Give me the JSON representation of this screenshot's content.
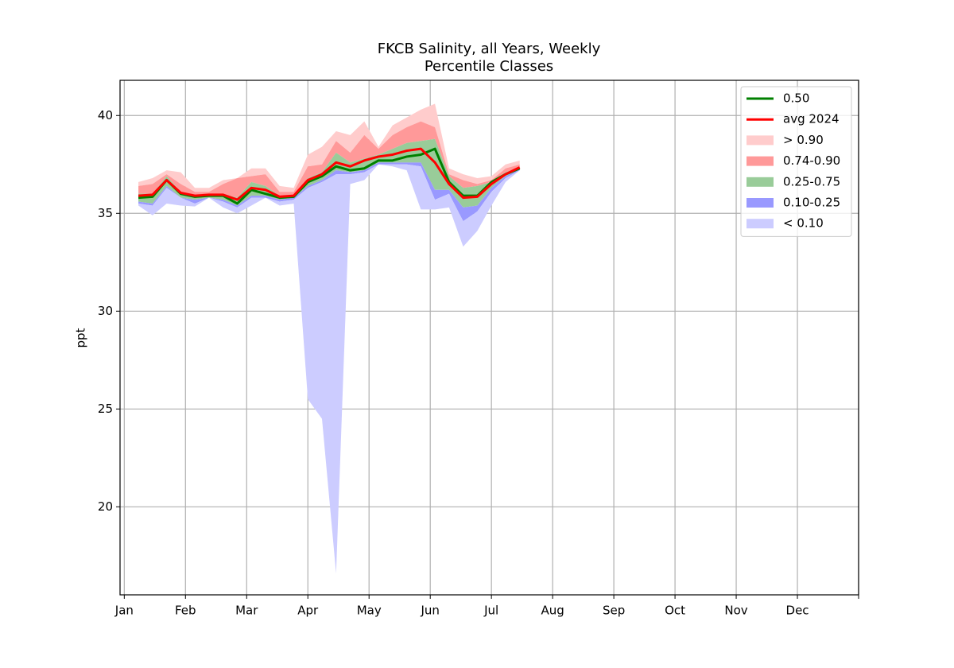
{
  "chart_data": {
    "type": "percentile-bands",
    "title": "FKCB Salinity, all Years, Weekly",
    "subtitle": "Percentile Classes",
    "ylabel": "ppt",
    "x": [
      1,
      2,
      3,
      4,
      5,
      6,
      7,
      8,
      9,
      10,
      11,
      12,
      13,
      14,
      15,
      16,
      17,
      18,
      19,
      20,
      21,
      22,
      23,
      24,
      25,
      26,
      27,
      28
    ],
    "xlim": [
      -0.3,
      52
    ],
    "xticks": [
      {
        "value": 0,
        "label": "Jan"
      },
      {
        "value": 4.333,
        "label": "Feb"
      },
      {
        "value": 8.667,
        "label": "Mar"
      },
      {
        "value": 13,
        "label": "Apr"
      },
      {
        "value": 17.333,
        "label": "May"
      },
      {
        "value": 21.667,
        "label": "Jun"
      },
      {
        "value": 26,
        "label": "Jul"
      },
      {
        "value": 30.333,
        "label": "Aug"
      },
      {
        "value": 34.667,
        "label": "Sep"
      },
      {
        "value": 39,
        "label": "Oct"
      },
      {
        "value": 43.333,
        "label": "Nov"
      },
      {
        "value": 47.667,
        "label": "Dec"
      },
      {
        "value": 52,
        "label": null
      }
    ],
    "ylim": [
      15.5,
      41.8
    ],
    "yticks": [
      20,
      25,
      30,
      35,
      40
    ],
    "grid": true,
    "legend": "upper right",
    "lines": [
      {
        "name": "0.50",
        "color": "#008000",
        "values": [
          35.8,
          35.85,
          36.7,
          36.0,
          35.85,
          35.9,
          35.9,
          35.5,
          36.2,
          36.0,
          35.8,
          35.85,
          36.6,
          36.9,
          37.4,
          37.2,
          37.3,
          37.7,
          37.7,
          37.9,
          38.0,
          38.3,
          36.6,
          35.9,
          35.9,
          36.6,
          37.0,
          37.3
        ]
      },
      {
        "name": "avg 2024",
        "color": "#ff0000",
        "values": [
          35.9,
          35.95,
          36.7,
          36.05,
          35.9,
          35.95,
          35.95,
          35.7,
          36.3,
          36.2,
          35.85,
          35.9,
          36.7,
          37.0,
          37.6,
          37.4,
          37.7,
          37.9,
          38.0,
          38.2,
          38.3,
          37.6,
          36.5,
          35.8,
          35.85,
          36.5,
          37.0,
          37.35
        ]
      }
    ],
    "bands": [
      {
        "name": "> 0.90",
        "color": "#ffcccc",
        "upper": [
          36.6,
          36.8,
          37.2,
          37.1,
          36.3,
          36.3,
          36.7,
          36.8,
          37.3,
          37.3,
          36.4,
          36.3,
          38.0,
          38.4,
          39.2,
          39.0,
          39.7,
          38.4,
          39.5,
          39.9,
          40.3,
          40.6,
          37.3,
          37.0,
          36.8,
          36.9,
          37.5,
          37.7
        ],
        "lower": [
          36.4,
          36.5,
          37.0,
          36.5,
          36.1,
          36.1,
          36.5,
          36.8,
          36.9,
          37.0,
          36.1,
          36.1,
          37.4,
          37.5,
          38.7,
          38.1,
          39.0,
          38.3,
          39.0,
          39.4,
          39.7,
          39.4,
          37.0,
          36.7,
          36.5,
          36.7,
          37.3,
          37.5
        ]
      },
      {
        "name": "0.74-0.90",
        "color": "#ff9999",
        "upper": [
          36.4,
          36.5,
          37.0,
          36.5,
          36.1,
          36.1,
          36.5,
          36.8,
          36.9,
          37.0,
          36.1,
          36.1,
          37.4,
          37.5,
          38.7,
          38.1,
          39.0,
          38.3,
          39.0,
          39.4,
          39.7,
          39.4,
          37.0,
          36.7,
          36.5,
          36.7,
          37.3,
          37.5
        ],
        "lower": [
          36.0,
          36.0,
          36.9,
          36.1,
          35.95,
          35.95,
          36.0,
          35.8,
          36.6,
          36.4,
          35.9,
          35.9,
          36.8,
          37.1,
          38.1,
          37.6,
          37.8,
          38.0,
          38.3,
          38.6,
          38.7,
          38.8,
          36.9,
          36.3,
          36.4,
          36.6,
          37.1,
          37.35
        ]
      },
      {
        "name": "0.25-0.75",
        "color": "#99cc99",
        "upper": [
          36.0,
          36.0,
          36.9,
          36.1,
          35.95,
          35.95,
          36.0,
          35.8,
          36.6,
          36.4,
          35.9,
          35.9,
          36.8,
          37.1,
          38.1,
          37.6,
          37.8,
          38.0,
          38.3,
          38.6,
          38.7,
          38.8,
          36.9,
          36.3,
          36.4,
          36.6,
          37.1,
          37.35
        ],
        "lower": [
          35.6,
          35.5,
          36.4,
          35.8,
          35.7,
          35.8,
          35.7,
          35.4,
          35.9,
          35.9,
          35.7,
          35.8,
          36.4,
          36.7,
          37.2,
          37.1,
          37.2,
          37.6,
          37.6,
          37.6,
          37.6,
          36.2,
          36.2,
          35.3,
          35.4,
          36.3,
          36.9,
          37.25
        ]
      },
      {
        "name": "0.10-0.25",
        "color": "#9999ff",
        "upper": [
          35.6,
          35.5,
          36.4,
          35.8,
          35.7,
          35.8,
          35.7,
          35.4,
          35.9,
          35.9,
          35.7,
          35.8,
          36.4,
          36.7,
          37.2,
          37.1,
          37.2,
          37.6,
          37.6,
          37.6,
          37.6,
          36.2,
          36.2,
          35.3,
          35.4,
          36.3,
          36.9,
          37.25
        ],
        "lower": [
          35.5,
          35.4,
          36.3,
          35.8,
          35.5,
          35.8,
          35.6,
          35.3,
          35.8,
          35.8,
          35.6,
          35.7,
          36.3,
          36.6,
          37.0,
          37.0,
          37.1,
          37.5,
          37.5,
          37.5,
          37.4,
          35.7,
          36.0,
          34.6,
          35.1,
          36.1,
          36.8,
          37.2
        ]
      },
      {
        "name": "< 0.10",
        "color": "#ccccff",
        "upper": [
          35.5,
          35.4,
          36.3,
          35.8,
          35.5,
          35.8,
          35.6,
          35.3,
          35.8,
          35.8,
          35.6,
          35.7,
          36.3,
          36.6,
          37.0,
          37.0,
          37.1,
          37.5,
          37.5,
          37.5,
          37.4,
          35.7,
          36.0,
          34.6,
          35.1,
          36.1,
          36.8,
          37.2
        ],
        "lower": [
          35.4,
          34.9,
          35.5,
          35.4,
          35.35,
          35.8,
          35.3,
          35.0,
          35.4,
          35.8,
          35.4,
          35.5,
          25.5,
          24.5,
          16.6,
          36.5,
          36.7,
          37.5,
          37.4,
          37.2,
          35.2,
          35.2,
          35.3,
          33.3,
          34.1,
          35.4,
          36.6,
          37.2
        ]
      }
    ]
  }
}
